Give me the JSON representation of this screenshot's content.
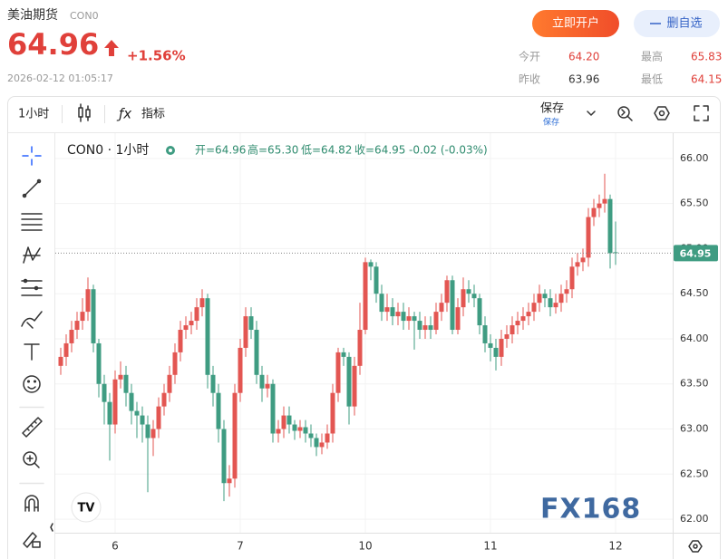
{
  "header": {
    "title": "美油期货",
    "code": "CON0",
    "price": "64.96",
    "change": "+1.56%",
    "time": "2026-02-12 01:05:17",
    "open_account": "立即开户",
    "remove_watchlist": "删自选"
  },
  "stats": [
    {
      "label": "今开",
      "value": "64.20"
    },
    {
      "label": "最高",
      "value": "65.83"
    },
    {
      "label": "昨收",
      "value": "63.96"
    },
    {
      "label": "最低",
      "value": "64.15"
    }
  ],
  "toolbar": {
    "interval": "1小时",
    "indicators": "指标",
    "save": "保存",
    "save_status": "保存"
  },
  "legend": {
    "symbol": "CON0 · 1小时",
    "open": "开=64.96",
    "high": "高=65.30",
    "low": "低=64.82",
    "close": "收=64.95",
    "change": "-0.02 (-0.03%)"
  },
  "watermark": "FX168",
  "chart_data": {
    "type": "candlestick",
    "categories": [
      null,
      null,
      null,
      null,
      null,
      null,
      null,
      null,
      null,
      null,
      "6",
      null,
      null,
      null,
      null,
      null,
      null,
      null,
      null,
      null,
      null,
      null,
      null,
      null,
      null,
      null,
      null,
      null,
      null,
      null,
      null,
      null,
      null,
      "7",
      null,
      null,
      null,
      null,
      null,
      null,
      null,
      null,
      null,
      null,
      null,
      null,
      null,
      null,
      null,
      null,
      null,
      null,
      null,
      null,
      null,
      null,
      "10",
      null,
      null,
      null,
      null,
      null,
      null,
      null,
      null,
      null,
      null,
      null,
      null,
      null,
      null,
      null,
      null,
      null,
      null,
      null,
      null,
      null,
      null,
      "11",
      null,
      null,
      null,
      null,
      null,
      null,
      null,
      null,
      null,
      null,
      null,
      null,
      null,
      null,
      null,
      null,
      null,
      null,
      null,
      null,
      null,
      null,
      "12"
    ],
    "open": [
      63.7,
      63.8,
      63.95,
      64.1,
      64.2,
      64.3,
      64.55,
      63.95,
      63.5,
      63.3,
      63.05,
      63.55,
      63.6,
      63.4,
      63.2,
      63.15,
      63.05,
      62.9,
      63.0,
      63.25,
      63.4,
      63.6,
      63.85,
      64.1,
      64.15,
      64.2,
      64.35,
      64.45,
      63.6,
      63.4,
      63.0,
      62.4,
      62.45,
      63.4,
      63.9,
      64.25,
      64.1,
      63.6,
      63.45,
      63.5,
      62.95,
      63.0,
      63.15,
      63.05,
      62.98,
      63.02,
      62.95,
      62.9,
      62.8,
      62.85,
      62.95,
      63.4,
      63.85,
      63.8,
      63.25,
      63.7,
      64.1,
      64.85,
      64.8,
      64.5,
      64.3,
      64.35,
      64.25,
      64.3,
      64.2,
      64.25,
      64.2,
      64.1,
      64.15,
      64.1,
      64.3,
      64.4,
      64.65,
      64.1,
      64.35,
      64.55,
      64.5,
      64.45,
      64.15,
      63.95,
      63.9,
      63.8,
      64.0,
      64.05,
      64.15,
      64.2,
      64.25,
      64.3,
      64.4,
      64.5,
      64.45,
      64.35,
      64.4,
      64.5,
      64.55,
      64.8,
      64.85,
      64.9,
      65.35,
      65.45,
      65.5,
      65.55,
      64.96
    ],
    "high": [
      63.9,
      64.05,
      64.2,
      64.3,
      64.45,
      64.68,
      64.6,
      64.0,
      63.6,
      63.4,
      63.65,
      63.75,
      63.7,
      63.5,
      63.3,
      63.25,
      63.15,
      63.1,
      63.35,
      63.5,
      63.7,
      63.95,
      64.2,
      64.25,
      64.3,
      64.45,
      64.55,
      64.5,
      63.7,
      63.5,
      63.1,
      62.6,
      63.5,
      64.0,
      64.35,
      64.35,
      64.2,
      63.7,
      63.6,
      63.55,
      63.1,
      63.25,
      63.25,
      63.1,
      63.1,
      63.1,
      63.05,
      62.95,
      62.95,
      63.05,
      63.5,
      63.9,
      63.9,
      63.85,
      63.8,
      64.4,
      64.9,
      64.88,
      64.85,
      64.6,
      64.5,
      64.45,
      64.4,
      64.4,
      64.35,
      64.3,
      64.3,
      64.25,
      64.25,
      64.4,
      64.5,
      64.7,
      64.7,
      64.45,
      64.68,
      64.65,
      64.6,
      64.5,
      64.25,
      64.05,
      64.0,
      64.1,
      64.15,
      64.25,
      64.3,
      64.35,
      64.4,
      64.5,
      64.6,
      64.55,
      64.55,
      64.5,
      64.6,
      64.65,
      64.9,
      64.95,
      65.0,
      65.45,
      65.55,
      65.6,
      65.83,
      65.6,
      65.3
    ],
    "low": [
      63.6,
      63.7,
      63.85,
      64.0,
      64.1,
      64.2,
      63.85,
      63.35,
      63.05,
      62.65,
      62.95,
      63.45,
      63.25,
      63.05,
      62.9,
      62.85,
      62.3,
      62.7,
      62.9,
      63.15,
      63.3,
      63.5,
      63.75,
      64.0,
      64.05,
      64.1,
      64.25,
      63.45,
      63.25,
      62.85,
      62.2,
      62.25,
      62.35,
      63.3,
      63.8,
      64.0,
      63.5,
      63.3,
      63.35,
      62.85,
      62.85,
      62.9,
      62.95,
      62.88,
      62.9,
      62.85,
      62.8,
      62.7,
      62.72,
      62.78,
      62.85,
      63.3,
      63.7,
      63.05,
      63.15,
      63.6,
      64.05,
      64.65,
      64.4,
      64.2,
      64.2,
      64.15,
      64.15,
      64.1,
      64.1,
      63.88,
      64.0,
      64.0,
      64.0,
      64.05,
      64.2,
      64.3,
      64.05,
      64.05,
      64.25,
      64.4,
      64.35,
      64.05,
      63.85,
      63.75,
      63.65,
      63.7,
      63.9,
      63.95,
      64.05,
      64.1,
      64.15,
      64.2,
      64.3,
      64.35,
      64.25,
      64.28,
      64.3,
      64.4,
      64.45,
      64.7,
      64.75,
      64.8,
      65.25,
      65.35,
      65.4,
      64.78,
      64.82
    ],
    "close": [
      63.8,
      63.95,
      64.1,
      64.2,
      64.3,
      64.55,
      63.95,
      63.5,
      63.3,
      63.05,
      63.55,
      63.6,
      63.4,
      63.2,
      63.15,
      63.05,
      62.9,
      63.0,
      63.25,
      63.4,
      63.6,
      63.85,
      64.1,
      64.15,
      64.2,
      64.35,
      64.45,
      63.6,
      63.4,
      63.0,
      62.4,
      62.45,
      63.4,
      63.9,
      64.25,
      64.1,
      63.6,
      63.45,
      63.5,
      62.95,
      63.0,
      63.15,
      63.05,
      62.98,
      63.02,
      62.95,
      62.9,
      62.8,
      62.85,
      62.95,
      63.4,
      63.85,
      63.8,
      63.25,
      63.7,
      64.1,
      64.85,
      64.8,
      64.5,
      64.3,
      64.35,
      64.25,
      64.3,
      64.2,
      64.25,
      64.2,
      64.1,
      64.15,
      64.1,
      64.3,
      64.4,
      64.65,
      64.1,
      64.35,
      64.55,
      64.5,
      64.45,
      64.15,
      63.95,
      63.9,
      63.8,
      64.0,
      64.05,
      64.15,
      64.2,
      64.25,
      64.3,
      64.4,
      64.5,
      64.45,
      64.35,
      64.4,
      64.5,
      64.55,
      64.8,
      64.85,
      64.9,
      65.35,
      65.45,
      65.5,
      65.55,
      64.95,
      64.95
    ],
    "up_color": "#e35652",
    "down_color": "#3f9c82",
    "last_value": 64.95,
    "ylim": [
      61.85,
      66.27
    ],
    "yticks": [
      {
        "value": 62,
        "label": "62.00"
      },
      {
        "value": 62.5,
        "label": "62.50"
      },
      {
        "value": 63,
        "label": "63.00"
      },
      {
        "value": 63.5,
        "label": "63.50"
      },
      {
        "value": 64,
        "label": "64.00"
      },
      {
        "value": 64.5,
        "label": "64.50"
      },
      {
        "value": 65,
        "label": "65.00"
      },
      {
        "value": 65.5,
        "label": "65.50"
      },
      {
        "value": 66,
        "label": "66.00"
      }
    ],
    "grid": true
  }
}
